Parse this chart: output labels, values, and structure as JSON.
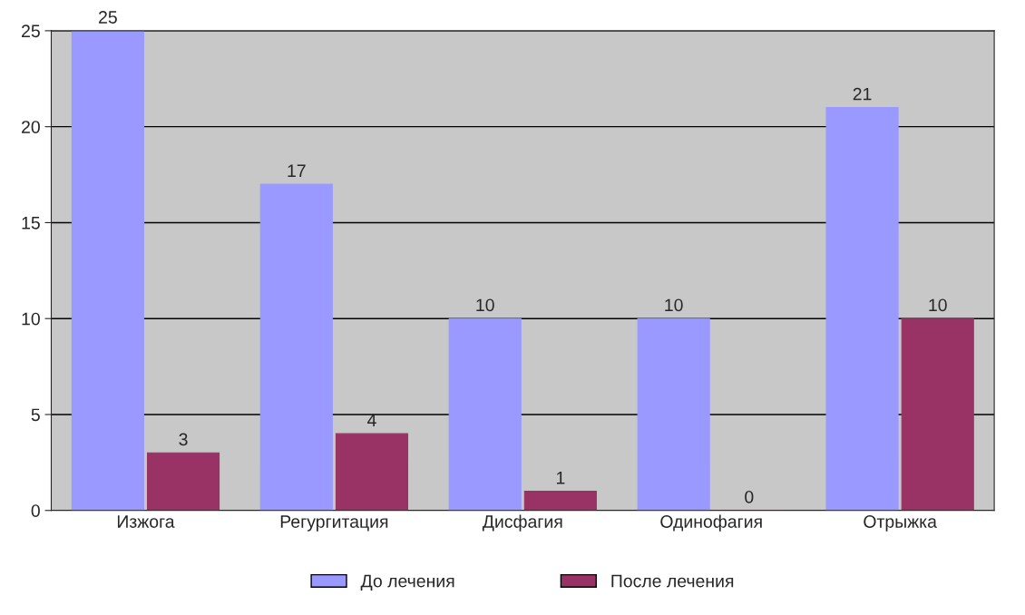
{
  "chart_data": {
    "type": "bar",
    "categories": [
      "Изжога",
      "Регургитация",
      "Дисфагия",
      "Одинофагия",
      "Отрыжка"
    ],
    "series": [
      {
        "name": "До лечения",
        "color": "#9999ff",
        "values": [
          25,
          17,
          10,
          10,
          21
        ]
      },
      {
        "name": "После лечения",
        "color": "#993366",
        "values": [
          3,
          4,
          1,
          0,
          10
        ]
      }
    ],
    "ylim": [
      0,
      25
    ],
    "yticks": [
      0,
      5,
      10,
      15,
      20,
      25
    ],
    "grid": "y",
    "legend": "bottom",
    "data_labels": true
  }
}
